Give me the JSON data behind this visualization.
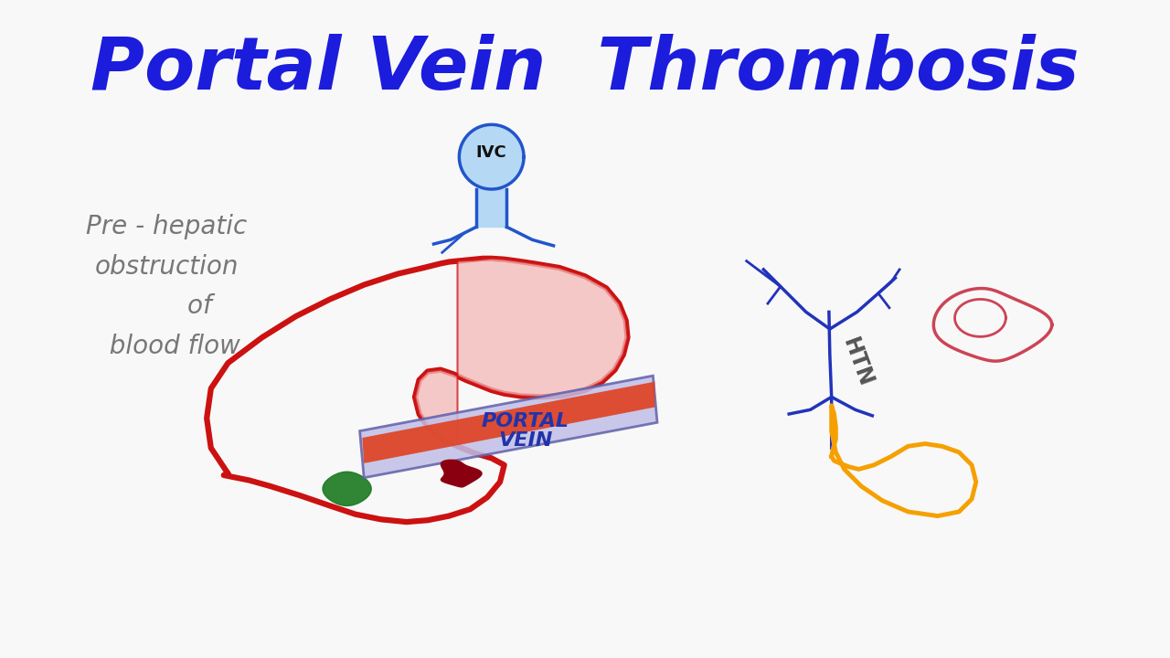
{
  "title": "Portal Vein  Thrombosis",
  "title_color": "#1c1cdd",
  "bg_color": "#f8f8f8",
  "liver_red": "#cc1111",
  "liver_pink": "#f5b8b8",
  "blue_vessel": "#2255cc",
  "blue_vessel_fill": "#aad4f5",
  "portal_lavender": "#c0bfe8",
  "portal_red": "#e04020",
  "clot_color": "#8b0010",
  "gb_color": "#1a7a20",
  "htn_blue": "#2233bb",
  "spleen_pink": "#cc4455",
  "bowel_orange": "#f5a000",
  "text_gray": "#777777",
  "annotation": "Pre - hepatic\nobstruction\n        of\n  blood flow",
  "ivc_label": "IVC",
  "portal_label": "PORTAL\nVEIN",
  "htn_label": "HTN"
}
